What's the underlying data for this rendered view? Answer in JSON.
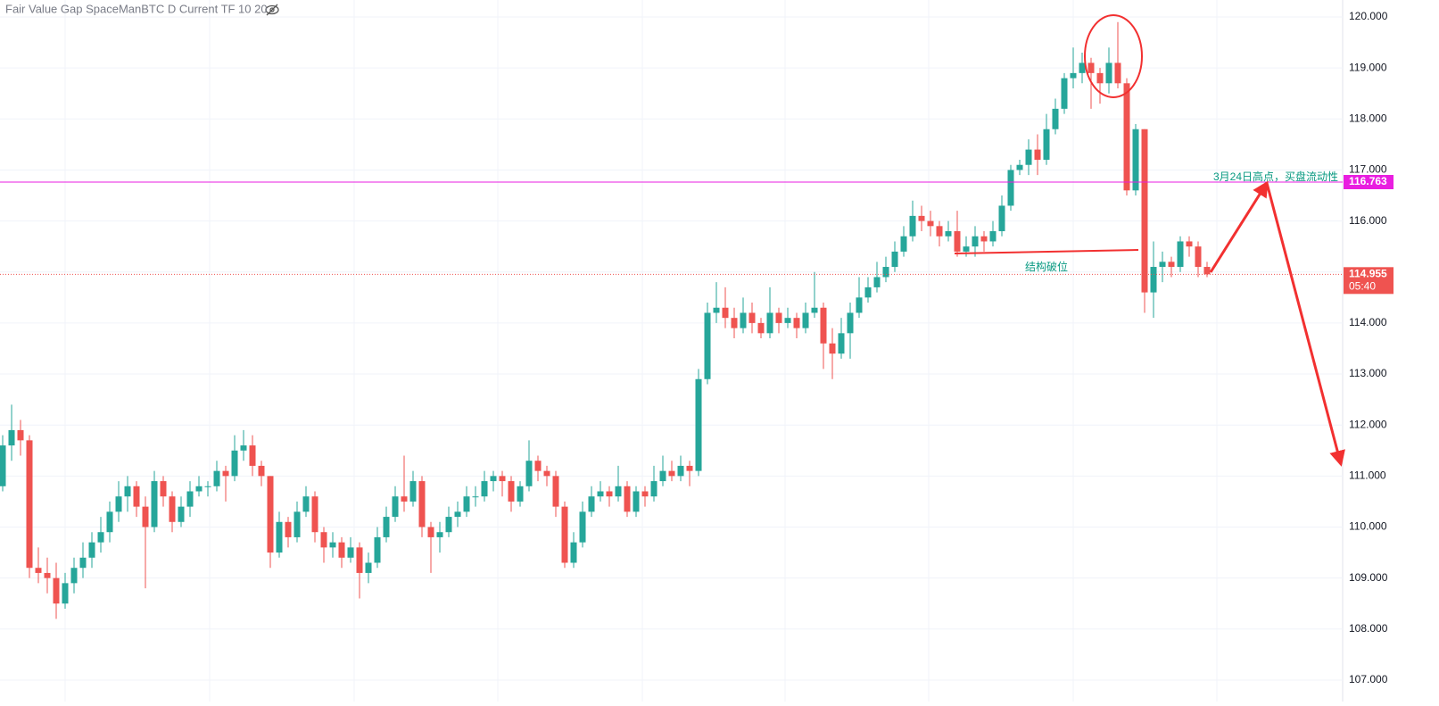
{
  "chart_data": {
    "type": "candlestick",
    "title": "Fair Value Gap SpaceManBTC D Current TF 10 20",
    "up_color": "#26a69a",
    "down_color": "#ef5350",
    "ylim": [
      107,
      120.3
    ],
    "yticks": [
      {
        "value": 107,
        "label": "107.000"
      },
      {
        "value": 108,
        "label": "108.000"
      },
      {
        "value": 109,
        "label": "109.000"
      },
      {
        "value": 110,
        "label": "110.000"
      },
      {
        "value": 111,
        "label": "111.000"
      },
      {
        "value": 112,
        "label": "112.000"
      },
      {
        "value": 113,
        "label": "113.000"
      },
      {
        "value": 114,
        "label": "114.000"
      },
      {
        "value": 115,
        "label": "115.000"
      },
      {
        "value": 116,
        "label": "116.000"
      },
      {
        "value": 117,
        "label": "117.000"
      },
      {
        "value": 118,
        "label": "118.000"
      },
      {
        "value": 119,
        "label": "119.000"
      },
      {
        "value": 120,
        "label": "120.000"
      }
    ],
    "grid": true,
    "level": {
      "value": 116.763,
      "color": "#e91ee0"
    },
    "last_price": {
      "value": 114.955,
      "countdown": "05:40"
    },
    "annotations": [
      "3月24日高点，买盘流动性",
      "结构破位"
    ],
    "ohlc": [
      [
        110.8,
        111.8,
        110.7,
        111.6
      ],
      [
        111.6,
        112.4,
        111.3,
        111.9
      ],
      [
        111.9,
        112.1,
        111.4,
        111.7
      ],
      [
        111.7,
        111.8,
        109.0,
        109.2
      ],
      [
        109.2,
        109.6,
        108.9,
        109.1
      ],
      [
        109.1,
        109.4,
        108.7,
        109.0
      ],
      [
        109.0,
        109.3,
        108.2,
        108.5
      ],
      [
        108.5,
        109.1,
        108.4,
        108.9
      ],
      [
        108.9,
        109.4,
        108.7,
        109.2
      ],
      [
        109.2,
        109.7,
        109.0,
        109.4
      ],
      [
        109.4,
        109.9,
        109.2,
        109.7
      ],
      [
        109.7,
        110.2,
        109.5,
        109.9
      ],
      [
        109.9,
        110.5,
        109.7,
        110.3
      ],
      [
        110.3,
        110.9,
        110.1,
        110.6
      ],
      [
        110.6,
        111.0,
        110.3,
        110.8
      ],
      [
        110.8,
        110.9,
        110.2,
        110.4
      ],
      [
        110.4,
        110.6,
        108.8,
        110.0
      ],
      [
        110.0,
        111.1,
        109.9,
        110.9
      ],
      [
        110.9,
        111.0,
        110.4,
        110.6
      ],
      [
        110.6,
        110.7,
        109.9,
        110.1
      ],
      [
        110.1,
        110.6,
        110.0,
        110.4
      ],
      [
        110.4,
        110.9,
        110.2,
        110.7
      ],
      [
        110.7,
        111.0,
        110.6,
        110.8
      ],
      [
        110.8,
        110.9,
        110.6,
        110.8
      ],
      [
        110.8,
        111.3,
        110.7,
        111.1
      ],
      [
        111.1,
        111.2,
        110.5,
        111.0
      ],
      [
        111.0,
        111.8,
        110.9,
        111.5
      ],
      [
        111.5,
        111.9,
        111.3,
        111.6
      ],
      [
        111.6,
        111.8,
        111.0,
        111.2
      ],
      [
        111.2,
        111.3,
        110.8,
        111.0
      ],
      [
        111.0,
        111.0,
        109.2,
        109.5
      ],
      [
        109.5,
        110.3,
        109.4,
        110.1
      ],
      [
        110.1,
        110.2,
        109.6,
        109.8
      ],
      [
        109.8,
        110.5,
        109.7,
        110.3
      ],
      [
        110.3,
        110.8,
        110.2,
        110.6
      ],
      [
        110.6,
        110.7,
        109.7,
        109.9
      ],
      [
        109.9,
        110.0,
        109.3,
        109.6
      ],
      [
        109.6,
        109.9,
        109.4,
        109.7
      ],
      [
        109.7,
        109.8,
        109.2,
        109.4
      ],
      [
        109.4,
        109.8,
        109.3,
        109.6
      ],
      [
        109.6,
        109.7,
        108.6,
        109.1
      ],
      [
        109.1,
        109.5,
        108.9,
        109.3
      ],
      [
        109.3,
        110.0,
        109.2,
        109.8
      ],
      [
        109.8,
        110.4,
        109.7,
        110.2
      ],
      [
        110.2,
        110.8,
        110.1,
        110.6
      ],
      [
        110.6,
        111.4,
        110.3,
        110.5
      ],
      [
        110.5,
        111.1,
        110.4,
        110.9
      ],
      [
        110.9,
        111.0,
        109.8,
        110.0
      ],
      [
        110.0,
        110.1,
        109.1,
        109.8
      ],
      [
        109.8,
        110.1,
        109.5,
        109.9
      ],
      [
        109.9,
        110.4,
        109.8,
        110.2
      ],
      [
        110.2,
        110.5,
        110.0,
        110.3
      ],
      [
        110.3,
        110.8,
        110.2,
        110.6
      ],
      [
        110.6,
        110.8,
        110.4,
        110.6
      ],
      [
        110.6,
        111.1,
        110.5,
        110.9
      ],
      [
        110.9,
        111.1,
        110.7,
        111.0
      ],
      [
        111.0,
        111.1,
        110.6,
        110.9
      ],
      [
        110.9,
        111.0,
        110.3,
        110.5
      ],
      [
        110.5,
        110.9,
        110.4,
        110.8
      ],
      [
        110.8,
        111.7,
        110.7,
        111.3
      ],
      [
        111.3,
        111.4,
        110.9,
        111.1
      ],
      [
        111.1,
        111.2,
        110.8,
        111.0
      ],
      [
        111.0,
        111.1,
        110.2,
        110.4
      ],
      [
        110.4,
        110.5,
        109.2,
        109.3
      ],
      [
        109.3,
        109.9,
        109.2,
        109.7
      ],
      [
        109.7,
        110.5,
        109.6,
        110.3
      ],
      [
        110.3,
        110.8,
        110.2,
        110.6
      ],
      [
        110.6,
        110.9,
        110.5,
        110.7
      ],
      [
        110.7,
        110.8,
        110.4,
        110.6
      ],
      [
        110.6,
        111.2,
        110.5,
        110.8
      ],
      [
        110.8,
        110.9,
        110.2,
        110.3
      ],
      [
        110.3,
        110.8,
        110.2,
        110.7
      ],
      [
        110.7,
        110.8,
        110.4,
        110.6
      ],
      [
        110.6,
        111.2,
        110.5,
        110.9
      ],
      [
        110.9,
        111.4,
        110.8,
        111.1
      ],
      [
        111.1,
        111.3,
        110.9,
        111.0
      ],
      [
        111.0,
        111.4,
        110.9,
        111.2
      ],
      [
        111.2,
        111.3,
        110.8,
        111.1
      ],
      [
        111.1,
        113.1,
        111.0,
        112.9
      ],
      [
        112.9,
        114.4,
        112.8,
        114.2
      ],
      [
        114.2,
        114.8,
        114.0,
        114.3
      ],
      [
        114.3,
        114.7,
        113.9,
        114.1
      ],
      [
        114.1,
        114.3,
        113.7,
        113.9
      ],
      [
        113.9,
        114.5,
        113.8,
        114.2
      ],
      [
        114.2,
        114.4,
        113.8,
        114.0
      ],
      [
        114.0,
        114.1,
        113.7,
        113.8
      ],
      [
        113.8,
        114.7,
        113.7,
        114.2
      ],
      [
        114.2,
        114.3,
        113.8,
        114.0
      ],
      [
        114.0,
        114.3,
        113.9,
        114.1
      ],
      [
        114.1,
        114.2,
        113.7,
        113.9
      ],
      [
        113.9,
        114.4,
        113.8,
        114.2
      ],
      [
        114.2,
        115.0,
        114.1,
        114.3
      ],
      [
        114.3,
        114.4,
        113.1,
        113.6
      ],
      [
        113.6,
        113.9,
        112.9,
        113.4
      ],
      [
        113.4,
        114.1,
        113.3,
        113.8
      ],
      [
        113.8,
        114.4,
        113.3,
        114.2
      ],
      [
        114.2,
        114.9,
        114.1,
        114.5
      ],
      [
        114.5,
        114.9,
        114.4,
        114.7
      ],
      [
        114.7,
        115.2,
        114.6,
        114.9
      ],
      [
        114.9,
        115.3,
        114.8,
        115.1
      ],
      [
        115.1,
        115.6,
        115.0,
        115.4
      ],
      [
        115.4,
        115.9,
        115.3,
        115.7
      ],
      [
        115.7,
        116.4,
        115.6,
        116.1
      ],
      [
        116.1,
        116.3,
        115.8,
        116.0
      ],
      [
        116.0,
        116.2,
        115.7,
        115.9
      ],
      [
        115.9,
        116.0,
        115.5,
        115.7
      ],
      [
        115.7,
        116.0,
        115.6,
        115.8
      ],
      [
        115.8,
        116.2,
        115.3,
        115.4
      ],
      [
        115.4,
        115.7,
        115.3,
        115.5
      ],
      [
        115.5,
        115.9,
        115.3,
        115.7
      ],
      [
        115.7,
        115.8,
        115.4,
        115.6
      ],
      [
        115.6,
        116.0,
        115.5,
        115.8
      ],
      [
        115.8,
        116.5,
        115.7,
        116.3
      ],
      [
        116.3,
        117.1,
        116.2,
        117.0
      ],
      [
        117.0,
        117.2,
        116.9,
        117.1
      ],
      [
        117.1,
        117.6,
        116.9,
        117.4
      ],
      [
        117.4,
        117.7,
        116.9,
        117.2
      ],
      [
        117.2,
        118.1,
        117.1,
        117.8
      ],
      [
        117.8,
        118.4,
        117.7,
        118.2
      ],
      [
        118.2,
        118.9,
        118.1,
        118.8
      ],
      [
        118.8,
        119.4,
        118.6,
        118.9
      ],
      [
        118.9,
        119.3,
        118.7,
        119.1
      ],
      [
        119.1,
        119.2,
        118.2,
        118.9
      ],
      [
        118.9,
        119.0,
        118.3,
        118.7
      ],
      [
        118.7,
        119.4,
        118.5,
        119.1
      ],
      [
        119.1,
        119.9,
        118.6,
        118.7
      ],
      [
        118.7,
        118.8,
        116.5,
        116.6
      ],
      [
        116.6,
        117.9,
        116.5,
        117.8
      ],
      [
        117.8,
        117.8,
        114.2,
        114.6
      ],
      [
        114.6,
        115.6,
        114.1,
        115.1
      ],
      [
        115.1,
        115.4,
        114.8,
        115.2
      ],
      [
        115.2,
        115.3,
        114.9,
        115.1
      ],
      [
        115.1,
        115.7,
        115.0,
        115.6
      ],
      [
        115.6,
        115.7,
        115.3,
        115.5
      ],
      [
        115.5,
        115.6,
        114.9,
        115.1
      ],
      [
        115.1,
        115.2,
        114.9,
        114.955
      ]
    ]
  }
}
